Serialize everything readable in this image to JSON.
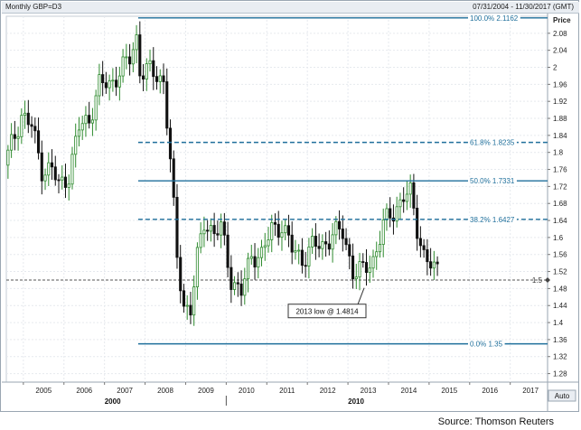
{
  "header": {
    "title": "Monthly GBP=D3",
    "date_range": "07/31/2004 - 11/30/2017 (GMT)"
  },
  "source": "Source: Thomson Reuters",
  "colors": {
    "background": "#ffffff",
    "candle_up": "#2d8a2d",
    "candle_down": "#111111",
    "fib_line": "#1f6f9b",
    "level_line": "#555555",
    "label_text": "#1f6f9b",
    "header_bg": "#e9edf2"
  },
  "chart_data": {
    "type": "candlestick",
    "ylabel": "Price",
    "ylim": [
      1.26,
      2.12
    ],
    "yticks": [
      "2.08",
      "2.04",
      "2",
      "1.96",
      "1.92",
      "1.88",
      "1.84",
      "1.8",
      "1.76",
      "1.72",
      "1.68",
      "1.64",
      "1.6",
      "1.56",
      "1.52",
      "1.48",
      "1.44",
      "1.4",
      "1.36",
      "1.32",
      "1.28"
    ],
    "x_labels": [
      "2005",
      "2006",
      "2007",
      "2008",
      "2009",
      "2010",
      "2011",
      "2012",
      "2013",
      "2014",
      "2015",
      "2016",
      "2017"
    ],
    "x_major_labels": [
      "2000",
      "2010"
    ],
    "x_range": [
      2004.58,
      2017.92
    ],
    "auto_label": "Auto",
    "grid": true,
    "fibonacci_levels": [
      {
        "label": "100.0% 2.1162",
        "value": 2.1162,
        "style": "solid",
        "x_start": 2007.83
      },
      {
        "label": "61.8% 1.8235",
        "value": 1.8235,
        "style": "dashed",
        "x_start": 2007.83
      },
      {
        "label": "50.0% 1.7331",
        "value": 1.7331,
        "style": "solid",
        "x_start": 2007.83
      },
      {
        "label": "38.2% 1.6427",
        "value": 1.6427,
        "style": "dashed",
        "x_start": 2007.83
      },
      {
        "label": "0.0% 1.35",
        "value": 1.35,
        "style": "solid",
        "x_start": 2007.83
      }
    ],
    "horizontal_level": {
      "label": "1.5",
      "value": 1.5,
      "style": "dashed"
    },
    "annotation": {
      "text": "2013 low @ 1.4814",
      "x": 2013.4,
      "y": 1.4814
    },
    "anchors": [
      [
        2004.58,
        1.77
      ],
      [
        2004.83,
        1.84
      ],
      [
        2005.0,
        1.89
      ],
      [
        2005.25,
        1.86
      ],
      [
        2005.5,
        1.76
      ],
      [
        2005.75,
        1.76
      ],
      [
        2005.92,
        1.72
      ],
      [
        2006.17,
        1.75
      ],
      [
        2006.42,
        1.86
      ],
      [
        2006.67,
        1.88
      ],
      [
        2006.92,
        1.96
      ],
      [
        2007.17,
        1.96
      ],
      [
        2007.42,
        1.99
      ],
      [
        2007.67,
        2.02
      ],
      [
        2007.83,
        2.07
      ],
      [
        2007.92,
        1.99
      ],
      [
        2008.17,
        1.99
      ],
      [
        2008.5,
        1.97
      ],
      [
        2008.67,
        1.77
      ],
      [
        2008.83,
        1.55
      ],
      [
        2009.0,
        1.44
      ],
      [
        2009.17,
        1.43
      ],
      [
        2009.33,
        1.55
      ],
      [
        2009.5,
        1.64
      ],
      [
        2009.75,
        1.61
      ],
      [
        2009.92,
        1.62
      ],
      [
        2010.17,
        1.5
      ],
      [
        2010.42,
        1.47
      ],
      [
        2010.67,
        1.56
      ],
      [
        2010.92,
        1.56
      ],
      [
        2011.17,
        1.62
      ],
      [
        2011.42,
        1.63
      ],
      [
        2011.67,
        1.57
      ],
      [
        2011.92,
        1.55
      ],
      [
        2012.17,
        1.58
      ],
      [
        2012.42,
        1.58
      ],
      [
        2012.67,
        1.61
      ],
      [
        2012.92,
        1.61
      ],
      [
        2013.17,
        1.52
      ],
      [
        2013.42,
        1.52
      ],
      [
        2013.67,
        1.55
      ],
      [
        2013.92,
        1.63
      ],
      [
        2014.17,
        1.66
      ],
      [
        2014.42,
        1.7
      ],
      [
        2014.58,
        1.7
      ],
      [
        2014.75,
        1.62
      ],
      [
        2014.92,
        1.56
      ],
      [
        2015.17,
        1.52
      ]
    ]
  }
}
